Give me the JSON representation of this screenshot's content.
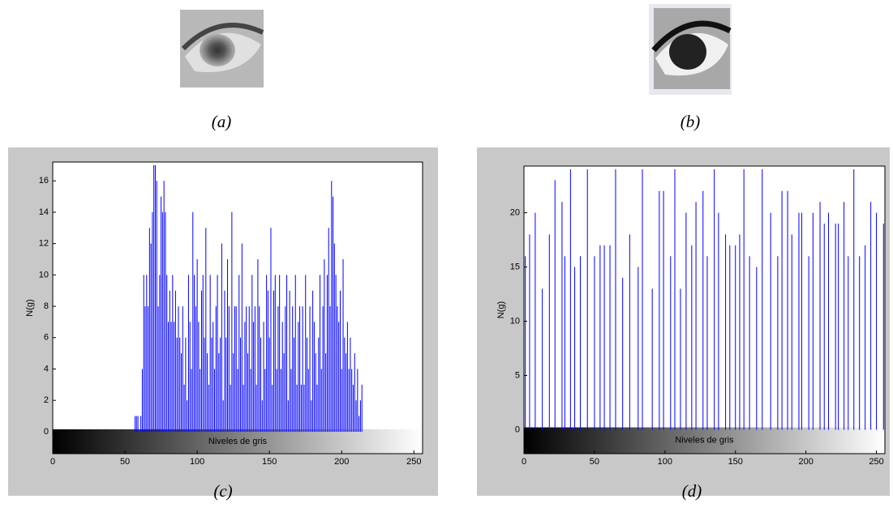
{
  "figures": [
    {
      "caption": "(a)"
    },
    {
      "caption": "(b)"
    }
  ],
  "chart_data": [
    {
      "type": "stem",
      "caption": "(c)",
      "ylabel": "N(g)",
      "xlabel": "Niveles de gris",
      "color": "#0000ff",
      "xlim": [
        0,
        256
      ],
      "ylim": [
        -1.4,
        17.2
      ],
      "xticks": [
        0,
        50,
        100,
        150,
        200,
        250
      ],
      "yticks": [
        0,
        2,
        4,
        6,
        8,
        10,
        12,
        14,
        16
      ],
      "x": [
        57,
        58,
        59,
        60,
        61,
        62,
        63,
        64,
        65,
        66,
        67,
        68,
        69,
        70,
        71,
        72,
        73,
        74,
        75,
        76,
        77,
        78,
        79,
        80,
        81,
        82,
        83,
        84,
        85,
        86,
        87,
        88,
        89,
        90,
        91,
        92,
        93,
        94,
        95,
        96,
        97,
        98,
        99,
        100,
        101,
        102,
        103,
        104,
        105,
        106,
        107,
        108,
        109,
        110,
        111,
        112,
        113,
        114,
        115,
        116,
        117,
        118,
        119,
        120,
        121,
        122,
        123,
        124,
        125,
        126,
        127,
        128,
        129,
        130,
        131,
        132,
        133,
        134,
        135,
        136,
        137,
        138,
        139,
        140,
        141,
        142,
        143,
        144,
        145,
        146,
        147,
        148,
        149,
        150,
        151,
        152,
        153,
        154,
        155,
        156,
        157,
        158,
        159,
        160,
        161,
        162,
        163,
        164,
        165,
        166,
        167,
        168,
        169,
        170,
        171,
        172,
        173,
        174,
        175,
        176,
        177,
        178,
        179,
        180,
        181,
        182,
        183,
        184,
        185,
        186,
        187,
        188,
        189,
        190,
        191,
        192,
        193,
        194,
        195,
        196,
        197,
        198,
        199,
        200,
        201,
        202,
        203,
        204,
        205,
        206,
        207,
        208,
        209,
        210,
        211,
        212,
        213,
        214
      ],
      "values": [
        1,
        1,
        1,
        0,
        1,
        4,
        10,
        8,
        10,
        8,
        13,
        12,
        14,
        17,
        17,
        16,
        8,
        10,
        15,
        14,
        16,
        14,
        10,
        7,
        9,
        7,
        10,
        7,
        9,
        6,
        8,
        6,
        5,
        8,
        3,
        6,
        2,
        10,
        7,
        4,
        14,
        10,
        8,
        11,
        7,
        4,
        9,
        10,
        6,
        13,
        5,
        3,
        10,
        6,
        7,
        4,
        8,
        10,
        5,
        6,
        12,
        2,
        9,
        6,
        11,
        8,
        3,
        14,
        5,
        8,
        8,
        4,
        10,
        6,
        12,
        3,
        7,
        8,
        5,
        8,
        4,
        10,
        7,
        8,
        3,
        11,
        8,
        6,
        2,
        7,
        4,
        10,
        9,
        6,
        13,
        3,
        9,
        10,
        4,
        8,
        10,
        4,
        7,
        5,
        8,
        10,
        2,
        9,
        4,
        8,
        6,
        10,
        3,
        7,
        8,
        3,
        8,
        3,
        10,
        6,
        4,
        8,
        2,
        9,
        7,
        5,
        3,
        6,
        10,
        4,
        8,
        11,
        5,
        10,
        13,
        8,
        16,
        15,
        12,
        10,
        8,
        7,
        9,
        4,
        11,
        6,
        5,
        7,
        4,
        6,
        4,
        3,
        5,
        2,
        4,
        1,
        2,
        3
      ]
    },
    {
      "type": "stem",
      "caption": "(d)",
      "ylabel": "N(g)",
      "xlabel": "Niveles de gris",
      "color": "#0000ff",
      "xlim": [
        0,
        256
      ],
      "ylim": [
        -2.2,
        24.3
      ],
      "xticks": [
        0,
        50,
        100,
        150,
        200,
        250
      ],
      "yticks": [
        0,
        5,
        10,
        15,
        20
      ],
      "x": [
        1,
        4,
        8,
        13,
        18,
        22,
        27,
        29,
        33,
        36,
        40,
        45,
        50,
        54,
        57,
        61,
        65,
        70,
        75,
        81,
        84,
        91,
        96,
        99,
        104,
        107,
        111,
        115,
        119,
        122,
        127,
        130,
        135,
        138,
        143,
        146,
        150,
        153,
        156,
        160,
        165,
        169,
        175,
        180,
        183,
        187,
        190,
        195,
        197,
        202,
        205,
        210,
        213,
        216,
        221,
        223,
        227,
        230,
        234,
        238,
        242,
        246,
        250,
        255
      ],
      "values": [
        16,
        18,
        20,
        13,
        18,
        23,
        21,
        16,
        24,
        15,
        16,
        24,
        16,
        17,
        17,
        17,
        24,
        14,
        18,
        15,
        24,
        13,
        22,
        22,
        16,
        24,
        13,
        20,
        17,
        21,
        22,
        16,
        24,
        20,
        18,
        17,
        17,
        18,
        24,
        16,
        15,
        24,
        20,
        16,
        22,
        22,
        18,
        20,
        20,
        16,
        20,
        21,
        19,
        20,
        19,
        19,
        21,
        16,
        24,
        16,
        17,
        21,
        20,
        19
      ]
    }
  ]
}
